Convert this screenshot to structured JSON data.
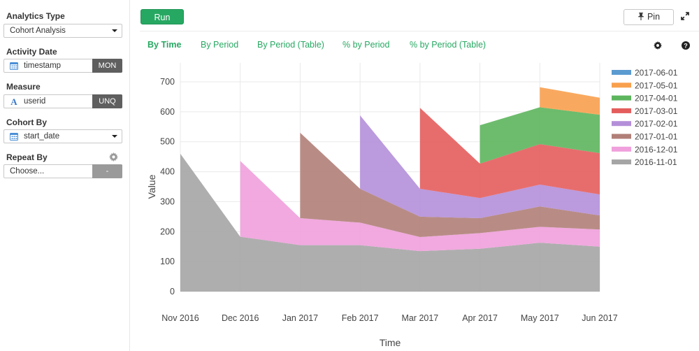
{
  "sidebar": {
    "analytics_type": {
      "label": "Analytics Type",
      "value": "Cohort Analysis"
    },
    "activity_date": {
      "label": "Activity Date",
      "value": "timestamp",
      "tag": "MON"
    },
    "measure": {
      "label": "Measure",
      "value": "userid",
      "tag": "UNQ"
    },
    "cohort_by": {
      "label": "Cohort By",
      "value": "start_date"
    },
    "repeat_by": {
      "label": "Repeat By",
      "placeholder": "Choose...",
      "tag": "-"
    }
  },
  "toolbar": {
    "run_label": "Run",
    "pin_label": "Pin"
  },
  "tabs": [
    {
      "label": "By Time",
      "active": true
    },
    {
      "label": "By Period",
      "active": false
    },
    {
      "label": "By Period (Table)",
      "active": false
    },
    {
      "label": "% by Period",
      "active": false
    },
    {
      "label": "% by Period (Table)",
      "active": false
    }
  ],
  "colors": {
    "accent": "#27a862",
    "grid": "#e9e9e9"
  },
  "chart_data": {
    "type": "area",
    "stacked": true,
    "x": [
      "Nov 2016",
      "Dec 2016",
      "Jan 2017",
      "Feb 2017",
      "Mar 2017",
      "Apr 2017",
      "May 2017",
      "Jun 2017"
    ],
    "xlabel": "Time",
    "ylabel": "Value",
    "ylim": [
      0,
      700
    ],
    "yticks": [
      0,
      100,
      200,
      300,
      400,
      500,
      600,
      700
    ],
    "grid": true,
    "legend_position": "right",
    "series": [
      {
        "name": "2016-11-01",
        "color": "#a5a5a5",
        "values": [
          460,
          183,
          155,
          155,
          135,
          143,
          163,
          150
        ]
      },
      {
        "name": "2016-12-01",
        "color": "#f0a0dc",
        "values": [
          null,
          253,
          90,
          75,
          47,
          52,
          53,
          57
        ]
      },
      {
        "name": "2017-01-01",
        "color": "#b07f78",
        "values": [
          null,
          null,
          285,
          113,
          68,
          50,
          68,
          47
        ]
      },
      {
        "name": "2017-02-01",
        "color": "#b48fd9",
        "values": [
          null,
          null,
          null,
          245,
          93,
          67,
          73,
          70
        ]
      },
      {
        "name": "2017-03-01",
        "color": "#e45d5d",
        "values": [
          null,
          null,
          null,
          null,
          270,
          115,
          135,
          138
        ]
      },
      {
        "name": "2017-04-01",
        "color": "#5db55d",
        "values": [
          null,
          null,
          null,
          null,
          null,
          128,
          123,
          128
        ]
      },
      {
        "name": "2017-05-01",
        "color": "#f8a04e",
        "values": [
          null,
          null,
          null,
          null,
          null,
          null,
          67,
          57
        ]
      },
      {
        "name": "2017-06-01",
        "color": "#5b9bd0",
        "values": [
          null,
          null,
          null,
          null,
          null,
          null,
          null,
          12
        ]
      }
    ]
  }
}
